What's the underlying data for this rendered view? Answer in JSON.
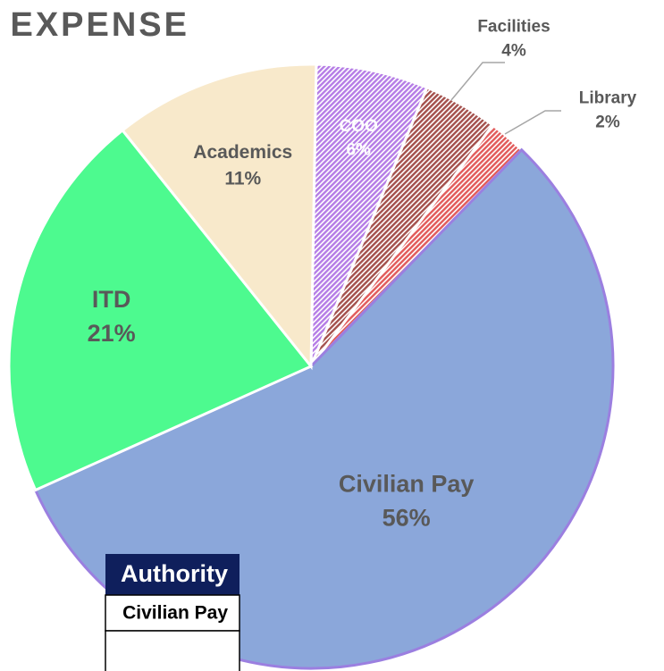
{
  "chart_data": {
    "type": "pie",
    "title": "EXPENSE",
    "categories": [
      "COO",
      "Facilities",
      "Library",
      "Civilian Pay",
      "ITD",
      "Academics"
    ],
    "values": [
      6,
      4,
      2,
      56,
      21,
      11
    ],
    "value_labels": [
      "6%",
      "4%",
      "2%",
      "56%",
      "21%",
      "11%"
    ],
    "colors": [
      "#b57ce6",
      "#a4504c",
      "#e25a5a",
      "#8ba7da",
      "#4dfa8f",
      "#f8e9cb"
    ],
    "hatched": [
      true,
      true,
      true,
      false,
      false,
      false
    ]
  },
  "table": {
    "header": "Authority",
    "rows": [
      "Civilian Pay"
    ]
  }
}
